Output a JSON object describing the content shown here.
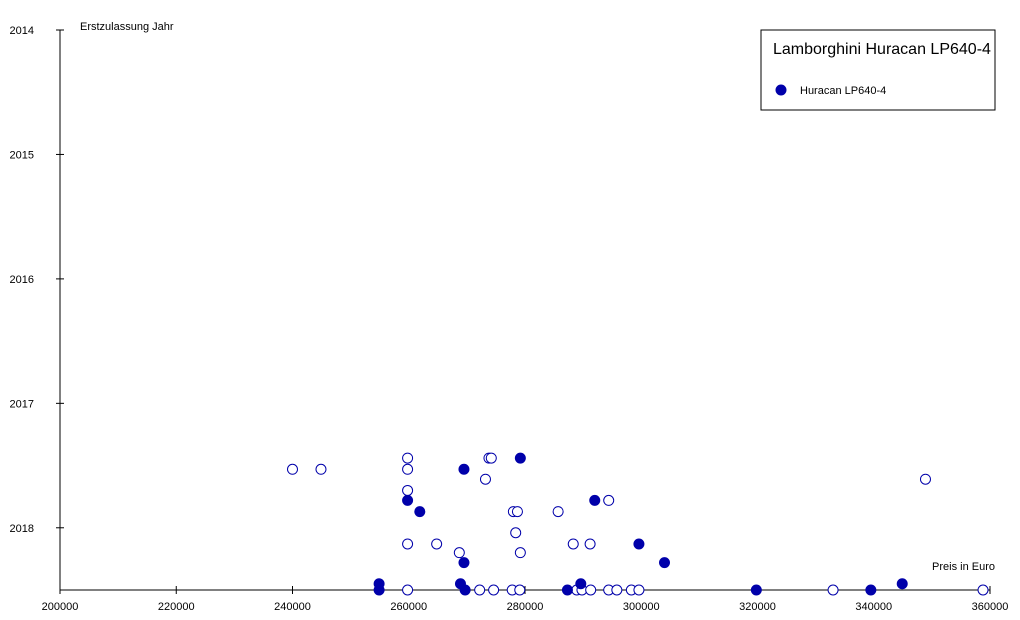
{
  "chart_data": {
    "type": "scatter",
    "title": "Lamborghini Huracan LP640-4",
    "xlabel": "Preis in Euro",
    "ylabel": "Erstzulassung Jahr",
    "xlim": [
      200000,
      360000
    ],
    "ylim": [
      2014,
      2018.5
    ],
    "y_inverted": true,
    "x_ticks": [
      "200000",
      "220000",
      "240000",
      "260000",
      "280000",
      "300000",
      "320000",
      "340000",
      "360000"
    ],
    "y_ticks": [
      "2014",
      "2015",
      "2016",
      "2017",
      "2018"
    ],
    "legend_position": "top-right",
    "colors": {
      "filled": "#0000aa",
      "open_stroke": "#0000aa",
      "open_fill": "#ffffff",
      "axis": "#000000"
    },
    "series": [
      {
        "name": "Huracan LP640-4",
        "marker": "filled",
        "points": [
          [
            254900,
            2018.45
          ],
          [
            254900,
            2018.5
          ],
          [
            259800,
            2017.78
          ],
          [
            261900,
            2017.87
          ],
          [
            269500,
            2017.53
          ],
          [
            268900,
            2018.45
          ],
          [
            269500,
            2018.28
          ],
          [
            269700,
            2018.5
          ],
          [
            279200,
            2017.44
          ],
          [
            287300,
            2018.5
          ],
          [
            289600,
            2018.45
          ],
          [
            292000,
            2017.78
          ],
          [
            299600,
            2018.13
          ],
          [
            304000,
            2018.28
          ],
          [
            319800,
            2018.5
          ],
          [
            339500,
            2018.5
          ],
          [
            344900,
            2018.45
          ]
        ]
      },
      {
        "name": "",
        "marker": "open",
        "points": [
          [
            240000,
            2017.53
          ],
          [
            244900,
            2017.53
          ],
          [
            259800,
            2017.44
          ],
          [
            259800,
            2017.53
          ],
          [
            259800,
            2017.7
          ],
          [
            259800,
            2018.13
          ],
          [
            259800,
            2018.5
          ],
          [
            264800,
            2018.13
          ],
          [
            268700,
            2018.2
          ],
          [
            273200,
            2017.61
          ],
          [
            273800,
            2017.44
          ],
          [
            274200,
            2017.44
          ],
          [
            272200,
            2018.5
          ],
          [
            274600,
            2018.5
          ],
          [
            278000,
            2017.87
          ],
          [
            278700,
            2017.87
          ],
          [
            278400,
            2018.04
          ],
          [
            279200,
            2018.2
          ],
          [
            277800,
            2018.5
          ],
          [
            279100,
            2018.5
          ],
          [
            285700,
            2017.87
          ],
          [
            288300,
            2018.13
          ],
          [
            288900,
            2018.5
          ],
          [
            289800,
            2018.5
          ],
          [
            291200,
            2018.13
          ],
          [
            291300,
            2018.5
          ],
          [
            294400,
            2017.78
          ],
          [
            294400,
            2018.5
          ],
          [
            295800,
            2018.5
          ],
          [
            298300,
            2018.5
          ],
          [
            299600,
            2018.5
          ],
          [
            333000,
            2018.5
          ],
          [
            348900,
            2017.61
          ],
          [
            358800,
            2018.5
          ]
        ]
      }
    ]
  }
}
